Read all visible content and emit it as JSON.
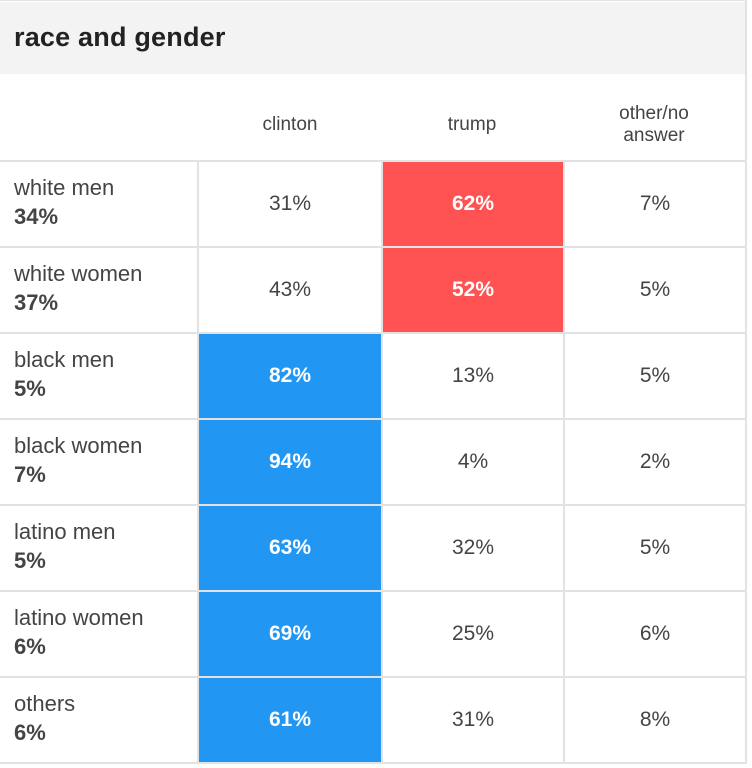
{
  "title": "race and gender",
  "colors": {
    "clinton": "#2196f3",
    "trump": "#ff5252"
  },
  "chart_data": {
    "type": "table",
    "title": "race and gender",
    "columns": [
      "clinton",
      "trump",
      "other/no answer"
    ],
    "column_labels": [
      "clinton",
      "trump",
      "other/no\nanswer"
    ],
    "rows": [
      {
        "group": "white men",
        "share": "34%",
        "values": [
          "31%",
          "62%",
          "7%"
        ],
        "winner": 1
      },
      {
        "group": "white women",
        "share": "37%",
        "values": [
          "43%",
          "52%",
          "5%"
        ],
        "winner": 1
      },
      {
        "group": "black men",
        "share": "5%",
        "values": [
          "82%",
          "13%",
          "5%"
        ],
        "winner": 0
      },
      {
        "group": "black women",
        "share": "7%",
        "values": [
          "94%",
          "4%",
          "2%"
        ],
        "winner": 0
      },
      {
        "group": "latino men",
        "share": "5%",
        "values": [
          "63%",
          "32%",
          "5%"
        ],
        "winner": 0
      },
      {
        "group": "latino women",
        "share": "6%",
        "values": [
          "69%",
          "25%",
          "6%"
        ],
        "winner": 0
      },
      {
        "group": "others",
        "share": "6%",
        "values": [
          "61%",
          "31%",
          "8%"
        ],
        "winner": 0
      }
    ]
  }
}
